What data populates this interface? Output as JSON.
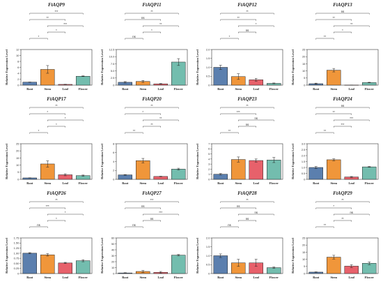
{
  "colors": {
    "root": "#5b7fae",
    "stem": "#f0963a",
    "leaf": "#e7616b",
    "flower": "#73bdae"
  },
  "ylabel": "Relative Expression Level",
  "chart_data": [
    {
      "type": "bar",
      "title": "FtAQP9",
      "categories": [
        "Root",
        "Stem",
        "Leaf",
        "Flower"
      ],
      "values": [
        1.0,
        5.3,
        0.25,
        3.0
      ],
      "errors": [
        0.05,
        1.3,
        0.05,
        0.1
      ],
      "ylim": [
        0,
        12
      ],
      "yticks": [
        "0",
        "2",
        "4",
        "6",
        "8",
        "10",
        "12"
      ],
      "significance": [
        {
          "from": 0,
          "to": 3,
          "label": "***"
        },
        {
          "from": 0,
          "to": 2,
          "label": "**"
        },
        {
          "from": 1,
          "to": 3,
          "label": "***"
        },
        {
          "from": 1,
          "to": 2,
          "label": "*"
        },
        {
          "from": 0,
          "to": 1,
          "label": "*"
        }
      ]
    },
    {
      "type": "bar",
      "title": "FtAQP11",
      "categories": [
        "Root",
        "Stem",
        "Leaf",
        "Flower"
      ],
      "values": [
        1.0,
        1.3,
        0.45,
        8.1
      ],
      "errors": [
        0.25,
        0.35,
        0.1,
        1.2
      ],
      "ylim": [
        0,
        12.5
      ],
      "yticks": [
        "0",
        "2.5",
        "5.0",
        "7.5",
        "10.0",
        "12.5"
      ],
      "significance": [
        {
          "from": 0,
          "to": 3,
          "label": "**"
        },
        {
          "from": 0,
          "to": 2,
          "label": "ns"
        },
        {
          "from": 1,
          "to": 3,
          "label": "**"
        },
        {
          "from": 1,
          "to": 2,
          "label": "*"
        },
        {
          "from": 0,
          "to": 1,
          "label": "ns"
        }
      ]
    },
    {
      "type": "bar",
      "title": "FtAQP12",
      "categories": [
        "Root",
        "Stem",
        "Leaf",
        "Flower"
      ],
      "values": [
        1.0,
        0.48,
        0.3,
        0.1
      ],
      "errors": [
        0.12,
        0.16,
        0.08,
        0.02
      ],
      "ylim": [
        0,
        2.0
      ],
      "yticks": [
        "0",
        "0.5",
        "1.0",
        "1.5",
        "2.0"
      ],
      "significance": [
        {
          "from": 0,
          "to": 3,
          "label": "**"
        },
        {
          "from": 0,
          "to": 2,
          "label": "**"
        },
        {
          "from": 1,
          "to": 3,
          "label": "*"
        },
        {
          "from": 1,
          "to": 2,
          "label": "ns"
        },
        {
          "from": 0,
          "to": 1,
          "label": "*"
        }
      ]
    },
    {
      "type": "bar",
      "title": "FtAQP13",
      "categories": [
        "Root",
        "Stem",
        "Leaf",
        "Flower"
      ],
      "values": [
        1.0,
        10.5,
        0.05,
        1.8
      ],
      "errors": [
        0.4,
        1.2,
        0.02,
        0.2
      ],
      "ylim": [
        0,
        25
      ],
      "yticks": [
        "0",
        "5",
        "10",
        "15",
        "20",
        "25"
      ],
      "significance": [
        {
          "from": 0,
          "to": 3,
          "label": "ns"
        },
        {
          "from": 0,
          "to": 2,
          "label": "**"
        },
        {
          "from": 1,
          "to": 3,
          "label": "**"
        },
        {
          "from": 1,
          "to": 2,
          "label": "*"
        },
        {
          "from": 0,
          "to": 1,
          "label": "**"
        }
      ]
    },
    {
      "type": "bar",
      "title": "FtAQP17",
      "categories": [
        "Root",
        "Stem",
        "Leaf",
        "Flower"
      ],
      "values": [
        1.0,
        10.8,
        3.2,
        2.6
      ],
      "errors": [
        0.1,
        2.2,
        0.7,
        0.4
      ],
      "ylim": [
        0,
        25
      ],
      "yticks": [
        "0",
        "5",
        "10",
        "15",
        "20",
        "25"
      ],
      "significance": [
        {
          "from": 0,
          "to": 3,
          "label": "**"
        },
        {
          "from": 0,
          "to": 2,
          "label": "*"
        },
        {
          "from": 1,
          "to": 3,
          "label": "*"
        },
        {
          "from": 1,
          "to": 2,
          "label": "*"
        },
        {
          "from": 0,
          "to": 1,
          "label": "*"
        }
      ]
    },
    {
      "type": "bar",
      "title": "FtAQP20",
      "categories": [
        "Root",
        "Stem",
        "Leaf",
        "Flower"
      ],
      "values": [
        1.0,
        4.2,
        0.65,
        2.3
      ],
      "errors": [
        0.08,
        0.5,
        0.05,
        0.2
      ],
      "ylim": [
        0,
        8
      ],
      "yticks": [
        "0",
        "2",
        "4",
        "6",
        "8"
      ],
      "significance": [
        {
          "from": 0,
          "to": 3,
          "label": "**"
        },
        {
          "from": 0,
          "to": 2,
          "label": "*"
        },
        {
          "from": 1,
          "to": 3,
          "label": "**"
        },
        {
          "from": 1,
          "to": 2,
          "label": "**"
        },
        {
          "from": 0,
          "to": 1,
          "label": "**"
        }
      ]
    },
    {
      "type": "bar",
      "title": "FtAQP23",
      "categories": [
        "Root",
        "Stem",
        "Leaf",
        "Flower"
      ],
      "values": [
        1.0,
        3.9,
        3.7,
        3.8
      ],
      "errors": [
        0.15,
        0.5,
        0.3,
        0.5
      ],
      "ylim": [
        0,
        7
      ],
      "yticks": [
        "0",
        "1",
        "2",
        "3",
        "4",
        "5",
        "6",
        "7"
      ],
      "significance": [
        {
          "from": 0,
          "to": 3,
          "label": "**"
        },
        {
          "from": 0,
          "to": 2,
          "label": "***"
        },
        {
          "from": 1,
          "to": 3,
          "label": "ns"
        },
        {
          "from": 1,
          "to": 2,
          "label": "ns"
        },
        {
          "from": 0,
          "to": 1,
          "label": "**"
        }
      ]
    },
    {
      "type": "bar",
      "title": "FtAQP24",
      "categories": [
        "Root",
        "Stem",
        "Leaf",
        "Flower"
      ],
      "values": [
        1.0,
        1.65,
        0.2,
        1.05
      ],
      "errors": [
        0.08,
        0.08,
        0.04,
        0.03
      ],
      "ylim": [
        0,
        3.0
      ],
      "yticks": [
        "0",
        "0.5",
        "1.0",
        "1.5",
        "2.0",
        "2.5",
        "3.0"
      ],
      "significance": [
        {
          "from": 0,
          "to": 3,
          "label": "ns"
        },
        {
          "from": 0,
          "to": 2,
          "label": "**"
        },
        {
          "from": 1,
          "to": 3,
          "label": "***"
        },
        {
          "from": 1,
          "to": 2,
          "label": "***"
        },
        {
          "from": 0,
          "to": 1,
          "label": "**"
        }
      ]
    },
    {
      "type": "bar",
      "title": "FtAQP26",
      "categories": [
        "Root",
        "Stem",
        "Leaf",
        "Flower"
      ],
      "values": [
        1.0,
        0.92,
        0.52,
        0.63
      ],
      "errors": [
        0.03,
        0.06,
        0.03,
        0.05
      ],
      "ylim": [
        0,
        1.75
      ],
      "yticks": [
        "0",
        "0.25",
        "0.50",
        "0.75",
        "1.00",
        "1.25",
        "1.50",
        "1.75"
      ],
      "significance": [
        {
          "from": 0,
          "to": 3,
          "label": "**"
        },
        {
          "from": 0,
          "to": 2,
          "label": "***"
        },
        {
          "from": 1,
          "to": 3,
          "label": "*"
        },
        {
          "from": 1,
          "to": 2,
          "label": "*"
        },
        {
          "from": 0,
          "to": 1,
          "label": "ns"
        }
      ]
    },
    {
      "type": "bar",
      "title": "FtAQP27",
      "categories": [
        "Root",
        "Stem",
        "Leaf",
        "Flower"
      ],
      "values": [
        1.0,
        3.5,
        2.0,
        31.0
      ],
      "errors": [
        0.4,
        1.5,
        1.5,
        1.2
      ],
      "ylim": [
        0,
        60
      ],
      "yticks": [
        "0",
        "10",
        "20",
        "30",
        "40",
        "50",
        "60"
      ],
      "significance": [
        {
          "from": 0,
          "to": 3,
          "label": "***"
        },
        {
          "from": 0,
          "to": 2,
          "label": "ns"
        },
        {
          "from": 1,
          "to": 3,
          "label": "***"
        },
        {
          "from": 1,
          "to": 2,
          "label": "ns"
        },
        {
          "from": 0,
          "to": 1,
          "label": "ns"
        }
      ]
    },
    {
      "type": "bar",
      "title": "FtAQP28",
      "categories": [
        "Root",
        "Stem",
        "Leaf",
        "Flower"
      ],
      "values": [
        1.0,
        0.6,
        0.6,
        0.33
      ],
      "errors": [
        0.1,
        0.2,
        0.2,
        0.04
      ],
      "ylim": [
        0,
        2.0
      ],
      "yticks": [
        "0",
        "0.5",
        "1.0",
        "1.5",
        "2.0"
      ],
      "significance": [
        {
          "from": 0,
          "to": 3,
          "label": "**"
        },
        {
          "from": 0,
          "to": 2,
          "label": "ns"
        },
        {
          "from": 1,
          "to": 3,
          "label": "ns"
        },
        {
          "from": 1,
          "to": 2,
          "label": "ns"
        },
        {
          "from": 0,
          "to": 1,
          "label": "ns"
        }
      ]
    },
    {
      "type": "bar",
      "title": "FtAQP29",
      "categories": [
        "Root",
        "Stem",
        "Leaf",
        "Flower"
      ],
      "values": [
        1.0,
        11.5,
        5.2,
        7.2
      ],
      "errors": [
        0.2,
        1.3,
        1.0,
        1.0
      ],
      "ylim": [
        0,
        25
      ],
      "yticks": [
        "0",
        "5",
        "10",
        "15",
        "20",
        "25"
      ],
      "significance": [
        {
          "from": 0,
          "to": 3,
          "label": "**"
        },
        {
          "from": 0,
          "to": 2,
          "label": "*"
        },
        {
          "from": 1,
          "to": 3,
          "label": "ns"
        },
        {
          "from": 1,
          "to": 2,
          "label": "**"
        },
        {
          "from": 0,
          "to": 1,
          "label": "**"
        }
      ]
    }
  ]
}
